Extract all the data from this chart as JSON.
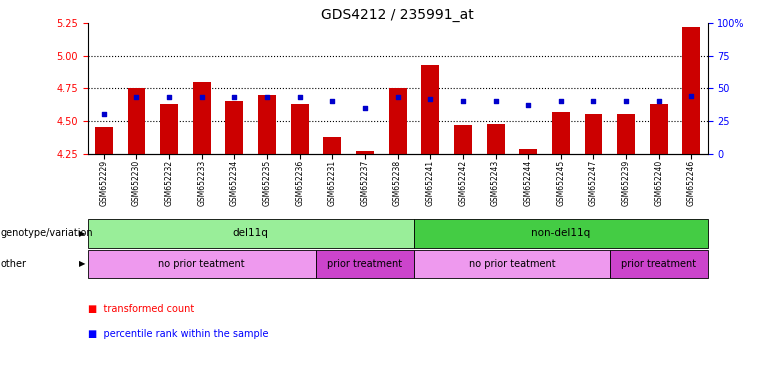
{
  "title": "GDS4212 / 235991_at",
  "samples": [
    "GSM652229",
    "GSM652230",
    "GSM652232",
    "GSM652233",
    "GSM652234",
    "GSM652235",
    "GSM652236",
    "GSM652231",
    "GSM652237",
    "GSM652238",
    "GSM652241",
    "GSM652242",
    "GSM652243",
    "GSM652244",
    "GSM652245",
    "GSM652247",
    "GSM652239",
    "GSM652240",
    "GSM652246"
  ],
  "bar_values": [
    4.45,
    4.75,
    4.63,
    4.8,
    4.65,
    4.7,
    4.63,
    4.38,
    4.27,
    4.75,
    4.93,
    4.47,
    4.48,
    4.285,
    4.57,
    4.55,
    4.55,
    4.63,
    5.22
  ],
  "percentile_values": [
    30,
    43,
    43,
    43,
    43,
    43,
    43,
    40,
    35,
    43,
    42,
    40,
    40,
    37,
    40,
    40,
    40,
    40,
    44
  ],
  "ymin": 4.25,
  "ymax": 5.25,
  "yticks": [
    4.25,
    4.5,
    4.75,
    5.0,
    5.25
  ],
  "right_yticks": [
    0,
    25,
    50,
    75,
    100
  ],
  "bar_color": "#cc0000",
  "dot_color": "#0000cc",
  "bar_bottom": 4.25,
  "genotype_groups": [
    {
      "label": "del11q",
      "start": 0,
      "end": 10,
      "color": "#99ee99"
    },
    {
      "label": "non-del11q",
      "start": 10,
      "end": 19,
      "color": "#44cc44"
    }
  ],
  "other_groups": [
    {
      "label": "no prior teatment",
      "start": 0,
      "end": 7,
      "color": "#ee99ee"
    },
    {
      "label": "prior treatment",
      "start": 7,
      "end": 10,
      "color": "#cc44cc"
    },
    {
      "label": "no prior teatment",
      "start": 10,
      "end": 16,
      "color": "#ee99ee"
    },
    {
      "label": "prior treatment",
      "start": 16,
      "end": 19,
      "color": "#cc44cc"
    }
  ],
  "title_fontsize": 10,
  "tick_fontsize": 7,
  "xtick_fontsize": 5.5,
  "row_label_fontsize": 7,
  "legend_fontsize": 7
}
